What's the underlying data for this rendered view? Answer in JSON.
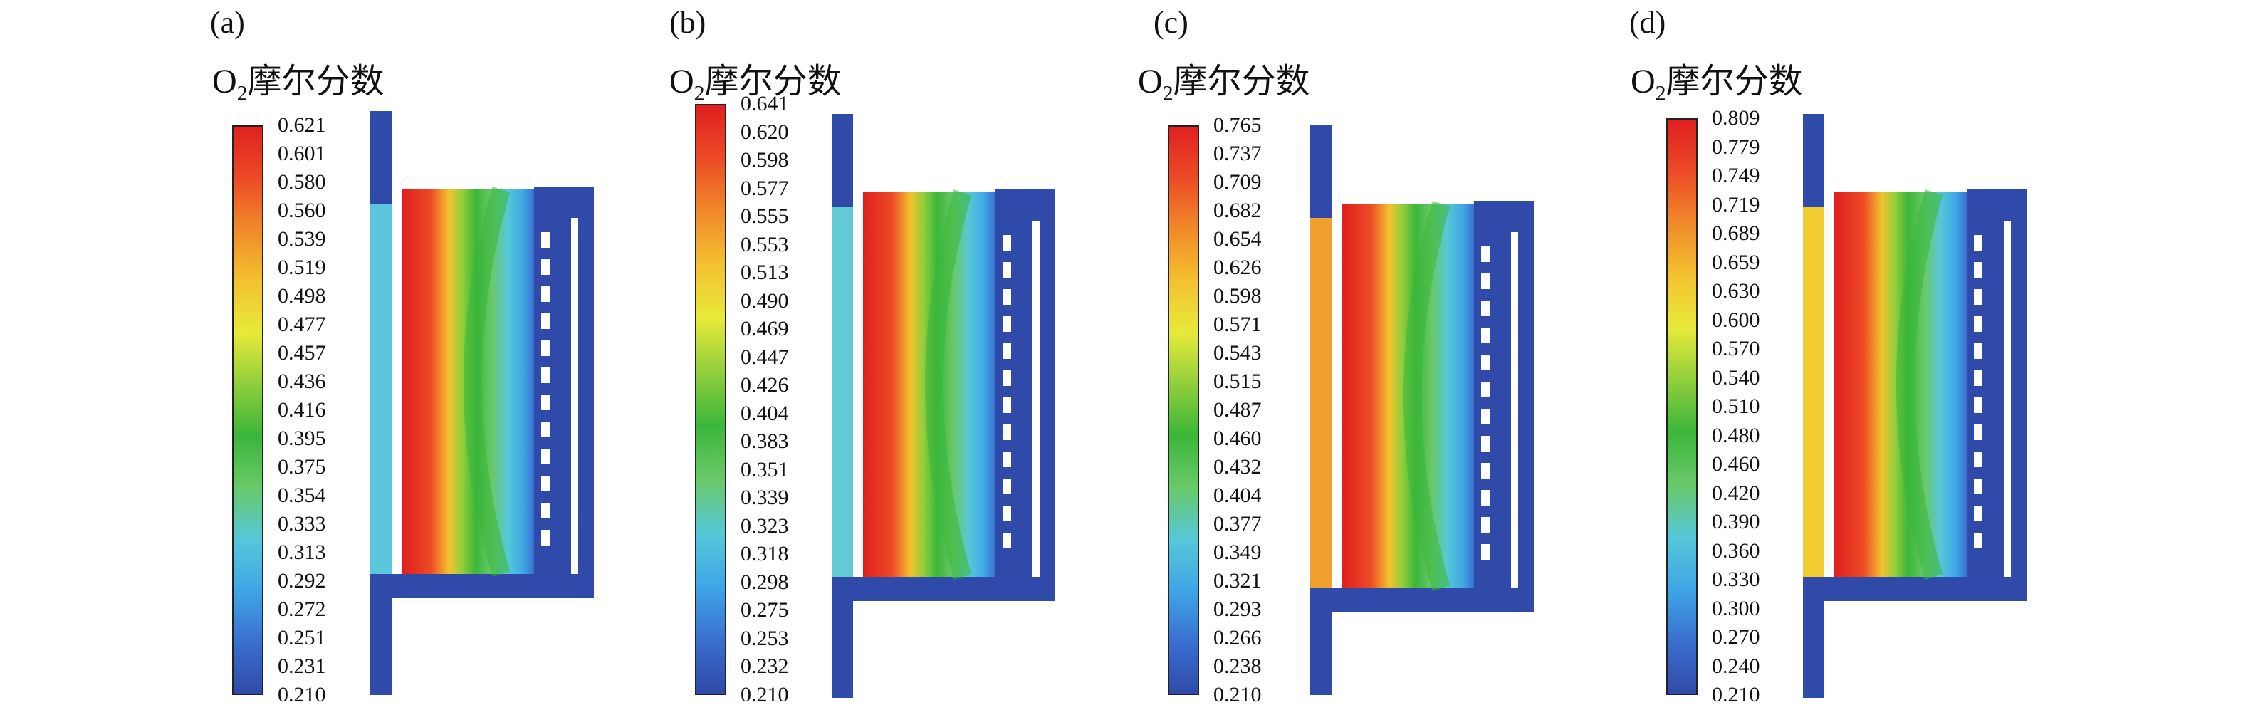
{
  "panels": [
    {
      "label": "(a)",
      "title_main": "O",
      "title_sub": "2",
      "title_rest": "摩尔分数",
      "ticks": [
        "0.621",
        "0.601",
        "0.580",
        "0.560",
        "0.539",
        "0.519",
        "0.498",
        "0.477",
        "0.457",
        "0.436",
        "0.416",
        "0.395",
        "0.375",
        "0.354",
        "0.333",
        "0.313",
        "0.292",
        "0.272",
        "0.251",
        "0.231",
        "0.210"
      ],
      "left_channel_color": "#5cc7dc"
    },
    {
      "label": "(b)",
      "title_main": "O",
      "title_sub": "2",
      "title_rest": "摩尔分数",
      "ticks": [
        "0.641",
        "0.620",
        "0.598",
        "0.577",
        "0.555",
        "0.553",
        "0.513",
        "0.490",
        "0.469",
        "0.447",
        "0.426",
        "0.404",
        "0.383",
        "0.351",
        "0.339",
        "0.323",
        "0.318",
        "0.298",
        "0.275",
        "0.253",
        "0.232",
        "0.210"
      ],
      "left_channel_color": "#62c9d6"
    },
    {
      "label": "(c)",
      "title_main": "O",
      "title_sub": "2",
      "title_rest": "摩尔分数",
      "ticks": [
        "0.765",
        "0.737",
        "0.709",
        "0.682",
        "0.654",
        "0.626",
        "0.598",
        "0.571",
        "0.543",
        "0.515",
        "0.487",
        "0.460",
        "0.432",
        "0.404",
        "0.377",
        "0.349",
        "0.321",
        "0.293",
        "0.266",
        "0.238",
        "0.210"
      ],
      "left_channel_color": "#f0a030"
    },
    {
      "label": "(d)",
      "title_main": "O",
      "title_sub": "2",
      "title_rest": "摩尔分数",
      "ticks": [
        "0.809",
        "0.779",
        "0.749",
        "0.719",
        "0.689",
        "0.659",
        "0.630",
        "0.600",
        "0.570",
        "0.540",
        "0.510",
        "0.480",
        "0.460",
        "0.420",
        "0.390",
        "0.360",
        "0.330",
        "0.300",
        "0.270",
        "0.240",
        "0.210"
      ],
      "left_channel_color": "#f2cc30"
    }
  ]
}
